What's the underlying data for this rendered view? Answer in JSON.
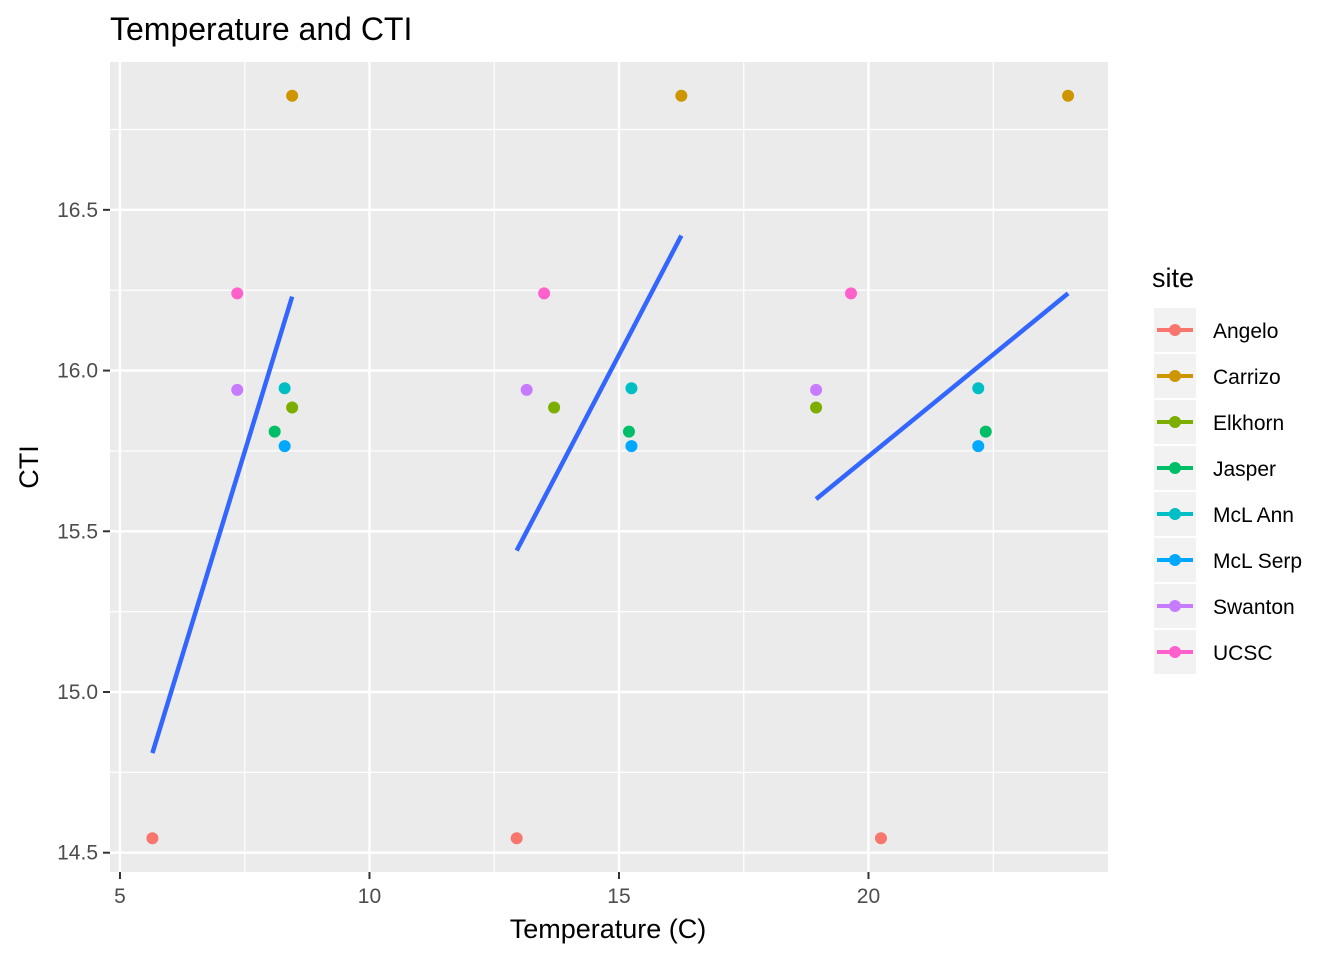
{
  "chart_data": {
    "type": "scatter",
    "title": "Temperature and CTI",
    "xlabel": "Temperature (C)",
    "ylabel": "CTI",
    "xlim": [
      4.8,
      24.8
    ],
    "ylim": [
      14.44,
      16.96
    ],
    "x_ticks": [
      5,
      10,
      15,
      20
    ],
    "x_tick_labels": [
      "5",
      "10",
      "15",
      "20"
    ],
    "x_minor_ticks": [
      7.5,
      12.5,
      17.5,
      22.5
    ],
    "y_ticks": [
      14.5,
      15.0,
      15.5,
      16.0,
      16.5
    ],
    "y_tick_labels": [
      "14.5",
      "15.0",
      "15.5",
      "16.0",
      "16.5"
    ],
    "y_minor_ticks": [
      14.75,
      15.25,
      15.75,
      16.25,
      16.75
    ],
    "grid": true,
    "legend": {
      "title": "site",
      "position": "right"
    },
    "series": [
      {
        "name": "Angelo",
        "color": "#F8766D",
        "points": [
          [
            5.65,
            14.545
          ],
          [
            12.95,
            14.545
          ],
          [
            20.25,
            14.545
          ]
        ]
      },
      {
        "name": "Carrizo",
        "color": "#CD9600",
        "points": [
          [
            8.45,
            16.855
          ],
          [
            16.25,
            16.855
          ],
          [
            24.0,
            16.855
          ]
        ]
      },
      {
        "name": "Elkhorn",
        "color": "#7CAE00",
        "points": [
          [
            8.45,
            15.885
          ],
          [
            13.7,
            15.885
          ],
          [
            18.95,
            15.885
          ]
        ]
      },
      {
        "name": "Jasper",
        "color": "#00BE67",
        "points": [
          [
            8.1,
            15.81
          ],
          [
            15.2,
            15.81
          ],
          [
            22.35,
            15.81
          ]
        ]
      },
      {
        "name": "McL Ann",
        "color": "#00BFC4",
        "points": [
          [
            8.3,
            15.945
          ],
          [
            15.25,
            15.945
          ],
          [
            22.2,
            15.945
          ]
        ]
      },
      {
        "name": "McL Serp",
        "color": "#00A9FF",
        "points": [
          [
            8.3,
            15.765
          ],
          [
            15.25,
            15.765
          ],
          [
            22.2,
            15.765
          ]
        ]
      },
      {
        "name": "Swanton",
        "color": "#C77CFF",
        "points": [
          [
            7.35,
            15.94
          ],
          [
            13.15,
            15.94
          ],
          [
            18.95,
            15.94
          ]
        ]
      },
      {
        "name": "UCSC",
        "color": "#FF61CC",
        "points": [
          [
            7.35,
            16.24
          ],
          [
            13.5,
            16.24
          ],
          [
            19.65,
            16.24
          ]
        ]
      }
    ],
    "fit_lines": {
      "color": "#3366FF",
      "segments": [
        [
          [
            5.65,
            14.81
          ],
          [
            8.45,
            16.23
          ]
        ],
        [
          [
            12.95,
            15.44
          ],
          [
            16.25,
            16.42
          ]
        ],
        [
          [
            18.95,
            15.6
          ],
          [
            24.0,
            16.24
          ]
        ]
      ]
    }
  }
}
